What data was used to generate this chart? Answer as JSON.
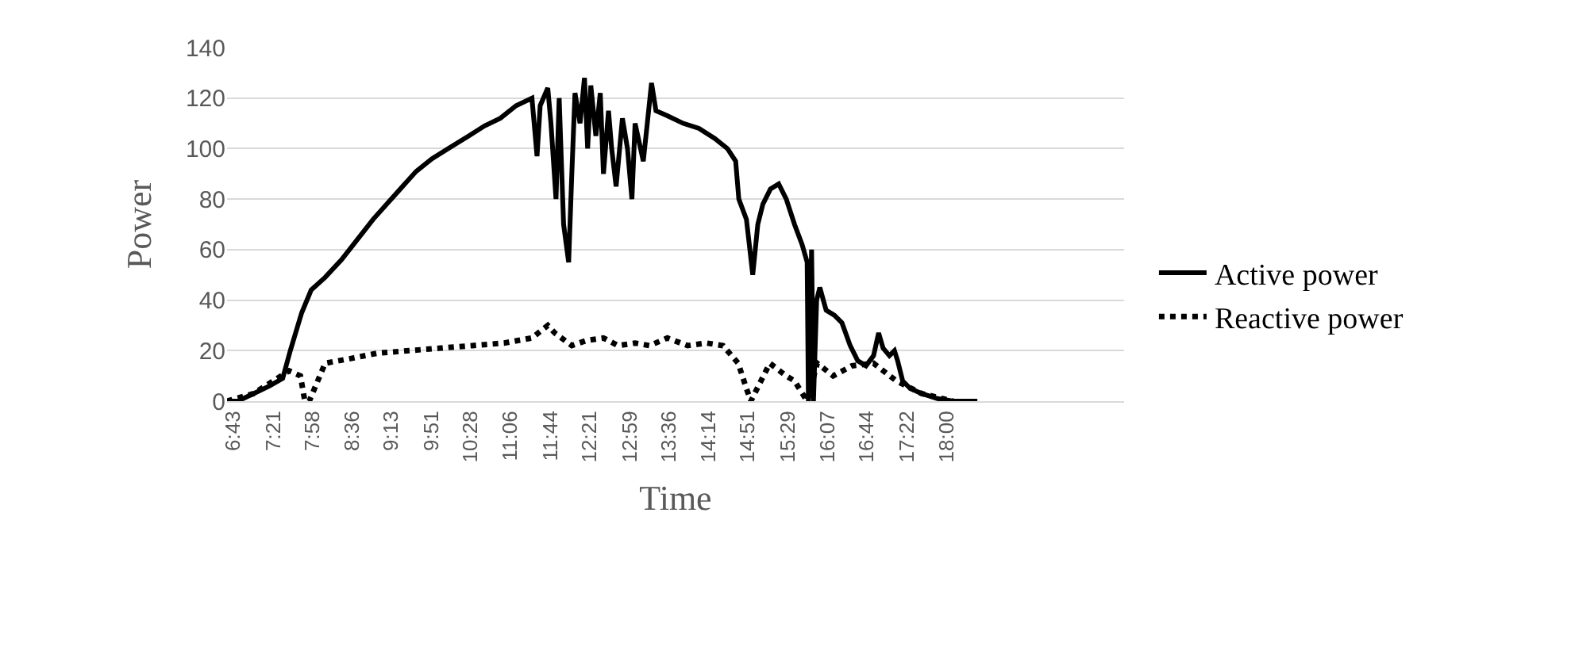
{
  "chart_data": {
    "type": "line",
    "xlabel": "Time",
    "ylabel": "Power",
    "xlim": [
      6.62,
      20.8
    ],
    "ylim": [
      0,
      140
    ],
    "yticks": [
      0,
      20,
      40,
      60,
      80,
      100,
      120,
      140
    ],
    "xticks": [
      {
        "value": 6.7167,
        "label": "6:43"
      },
      {
        "value": 7.35,
        "label": "7:21"
      },
      {
        "value": 7.9667,
        "label": "7:58"
      },
      {
        "value": 8.6,
        "label": "8:36"
      },
      {
        "value": 9.2167,
        "label": "9:13"
      },
      {
        "value": 9.85,
        "label": "9:51"
      },
      {
        "value": 10.4667,
        "label": "10:28"
      },
      {
        "value": 11.1,
        "label": "11:06"
      },
      {
        "value": 11.7333,
        "label": "11:44"
      },
      {
        "value": 12.35,
        "label": "12:21"
      },
      {
        "value": 12.9833,
        "label": "12:59"
      },
      {
        "value": 13.6,
        "label": "13:36"
      },
      {
        "value": 14.2333,
        "label": "14:14"
      },
      {
        "value": 14.85,
        "label": "14:51"
      },
      {
        "value": 15.4833,
        "label": "15:29"
      },
      {
        "value": 16.1167,
        "label": "16:07"
      },
      {
        "value": 16.7333,
        "label": "16:44"
      },
      {
        "value": 17.3667,
        "label": "17:22"
      },
      {
        "value": 18.0,
        "label": "18:00"
      }
    ],
    "grid": "y",
    "legend": "right",
    "marker": "none",
    "series": [
      {
        "name": "Active power",
        "color": "#000000",
        "line_style": "solid",
        "x": [
          6.62,
          6.79,
          7.04,
          7.29,
          7.5,
          7.62,
          7.8,
          7.95,
          8.17,
          8.43,
          8.68,
          8.93,
          9.18,
          9.43,
          9.61,
          9.86,
          10.18,
          10.44,
          10.69,
          10.94,
          11.19,
          11.44,
          11.52,
          11.57,
          11.69,
          11.74,
          11.82,
          11.87,
          11.94,
          12.02,
          12.07,
          12.12,
          12.2,
          12.27,
          12.32,
          12.37,
          12.45,
          12.52,
          12.57,
          12.65,
          12.7,
          12.77,
          12.87,
          12.95,
          13.02,
          13.07,
          13.2,
          13.33,
          13.4,
          13.58,
          13.83,
          14.08,
          14.33,
          14.53,
          14.66,
          14.71,
          14.83,
          14.93,
          15.01,
          15.09,
          15.21,
          15.34,
          15.46,
          15.59,
          15.71,
          15.79,
          15.81,
          15.86,
          15.89,
          15.94,
          15.99,
          16.09,
          16.22,
          16.34,
          16.47,
          16.59,
          16.72,
          16.84,
          16.92,
          16.99,
          17.09,
          17.17,
          17.22,
          17.3,
          17.42,
          17.6,
          17.85,
          18.1,
          18.48
        ],
        "values": [
          0,
          0,
          3,
          6,
          9,
          20,
          35,
          44,
          49,
          56,
          64,
          72,
          79,
          86,
          91,
          96,
          101,
          105,
          109,
          112,
          117,
          120,
          97,
          117,
          124,
          110,
          80,
          120,
          70,
          55,
          90,
          122,
          110,
          128,
          100,
          125,
          105,
          122,
          90,
          115,
          100,
          85,
          112,
          100,
          80,
          110,
          95,
          126,
          115,
          113,
          110,
          108,
          104,
          100,
          95,
          80,
          72,
          50,
          70,
          78,
          84,
          86,
          80,
          70,
          62,
          55,
          0,
          60,
          0,
          40,
          45,
          36,
          34,
          31,
          22,
          16,
          14,
          18,
          27,
          21,
          18,
          20,
          16,
          8,
          5,
          3,
          1,
          0,
          0
        ]
      },
      {
        "name": "Reactive power",
        "color": "#000000",
        "line_style": "dotted",
        "x": [
          6.62,
          7.04,
          7.35,
          7.6,
          7.78,
          7.85,
          7.92,
          8.17,
          8.6,
          9.0,
          9.5,
          10.0,
          10.5,
          11.0,
          11.44,
          11.69,
          11.8,
          12.07,
          12.3,
          12.57,
          12.8,
          13.07,
          13.3,
          13.58,
          13.9,
          14.2,
          14.46,
          14.7,
          14.83,
          14.9,
          15.2,
          15.46,
          15.59,
          15.79,
          15.95,
          16.2,
          16.5,
          16.84,
          17.2,
          17.6,
          18.1
        ],
        "values": [
          0,
          3,
          8,
          12,
          10,
          0,
          0,
          15,
          17,
          19,
          20,
          21,
          22,
          23,
          25,
          30,
          27,
          22,
          24,
          25,
          22,
          23,
          22,
          25,
          22,
          23,
          22,
          15,
          5,
          0,
          15,
          10,
          8,
          0,
          15,
          10,
          14,
          15,
          8,
          3,
          0
        ]
      }
    ]
  }
}
